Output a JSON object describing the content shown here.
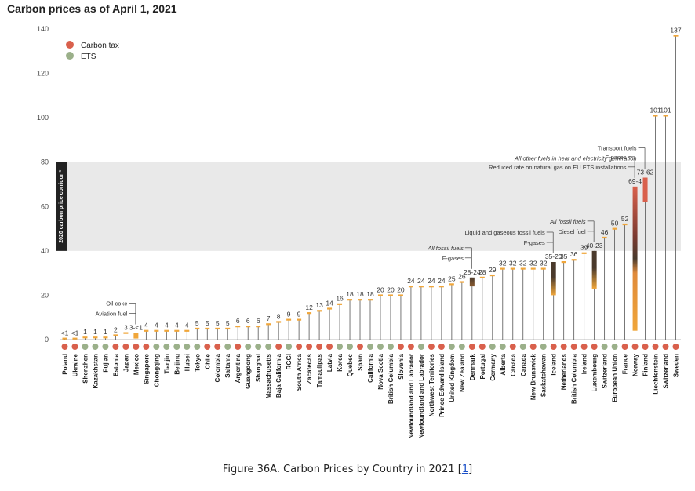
{
  "title": "Carbon prices as of April 1, 2021",
  "caption": {
    "text": "Figure 36A. Carbon Prices by Country in 2021 [",
    "link": "1",
    "close": "]"
  },
  "chart_data": {
    "type": "bar",
    "ylim": [
      0,
      140
    ],
    "yticks": [
      0,
      20,
      40,
      60,
      80,
      100,
      120,
      140
    ],
    "corridor": {
      "range": [
        40,
        80
      ],
      "label": "2020 carbon price corridor *"
    },
    "legend": {
      "placement": "top-left",
      "items": [
        {
          "name": "Carbon tax",
          "color": "#d9604c"
        },
        {
          "name": "ETS",
          "color": "#9bb08a"
        }
      ]
    },
    "colors": {
      "tax": "#d9604c",
      "ets": "#9bb08a",
      "bar": "#f0a63a",
      "dark": "#4a3a2c",
      "stem": "#555555",
      "grid": "#e9e9e9"
    },
    "categories": [
      {
        "name": "Poland",
        "type": "tax",
        "value": 0.5,
        "label": "<1"
      },
      {
        "name": "Ukraine",
        "type": "tax",
        "value": 0.5,
        "label": "<1"
      },
      {
        "name": "Shenzhen",
        "type": "ets",
        "value": 1,
        "label": "1"
      },
      {
        "name": "Kazakhstan",
        "type": "ets",
        "value": 1,
        "label": "1"
      },
      {
        "name": "Fujian",
        "type": "ets",
        "value": 1,
        "label": "1"
      },
      {
        "name": "Estonia",
        "type": "tax",
        "value": 2,
        "label": "2"
      },
      {
        "name": "Japan",
        "type": "tax",
        "value": 3,
        "label": "3"
      },
      {
        "name": "Mexico",
        "type": "tax",
        "low": 0.5,
        "high": 3,
        "label": "3-<1",
        "style": "range"
      },
      {
        "name": "Singapore",
        "type": "tax",
        "value": 4,
        "label": "4"
      },
      {
        "name": "Chongqing",
        "type": "ets",
        "value": 4,
        "label": "4"
      },
      {
        "name": "Tianjin",
        "type": "ets",
        "value": 4,
        "label": "4"
      },
      {
        "name": "Beijing",
        "type": "ets",
        "value": 4,
        "label": "4"
      },
      {
        "name": "Hubei",
        "type": "ets",
        "value": 4,
        "label": "4"
      },
      {
        "name": "Tokyo",
        "type": "ets",
        "value": 5,
        "label": "5"
      },
      {
        "name": "Chile",
        "type": "tax",
        "value": 5,
        "label": "5"
      },
      {
        "name": "Colombia",
        "type": "tax",
        "value": 5,
        "label": "5"
      },
      {
        "name": "Saitama",
        "type": "ets",
        "value": 5,
        "label": "5"
      },
      {
        "name": "Argentina",
        "type": "tax",
        "value": 6,
        "label": "6"
      },
      {
        "name": "Guangdong",
        "type": "ets",
        "value": 6,
        "label": "6"
      },
      {
        "name": "Shanghai",
        "type": "ets",
        "value": 6,
        "label": "6"
      },
      {
        "name": "Massachusetts",
        "type": "ets",
        "value": 7,
        "label": "7"
      },
      {
        "name": "Baja California",
        "type": "tax",
        "value": 8,
        "label": "8"
      },
      {
        "name": "RGGI",
        "type": "ets",
        "value": 9,
        "label": "9"
      },
      {
        "name": "South Africa",
        "type": "tax",
        "value": 9,
        "label": "9"
      },
      {
        "name": "Zacatecas",
        "type": "tax",
        "value": 12,
        "label": "12"
      },
      {
        "name": "Tamaulipas",
        "type": "tax",
        "value": 13,
        "label": "13"
      },
      {
        "name": "Latvia",
        "type": "tax",
        "value": 14,
        "label": "14"
      },
      {
        "name": "Korea",
        "type": "ets",
        "value": 16,
        "label": "16"
      },
      {
        "name": "Quebec",
        "type": "ets",
        "value": 18,
        "label": "18"
      },
      {
        "name": "Spain",
        "type": "tax",
        "value": 18,
        "label": "18"
      },
      {
        "name": "California",
        "type": "ets",
        "value": 18,
        "label": "18"
      },
      {
        "name": "Nova Scotia",
        "type": "ets",
        "value": 20,
        "label": "20"
      },
      {
        "name": "British Columbia",
        "type": "ets",
        "value": 20,
        "label": "20"
      },
      {
        "name": "Slovenia",
        "type": "tax",
        "value": 20,
        "label": "20"
      },
      {
        "name": "Newfoundland and Labrador",
        "type": "tax",
        "value": 24,
        "label": "24"
      },
      {
        "name": "Newfoundland and Labrador",
        "type": "ets",
        "value": 24,
        "label": "24"
      },
      {
        "name": "Northwest Territories",
        "type": "tax",
        "value": 24,
        "label": "24"
      },
      {
        "name": "Prince Edward Island",
        "type": "tax",
        "value": 24,
        "label": "24"
      },
      {
        "name": "United Kingdom",
        "type": "ets",
        "value": 25,
        "label": "25"
      },
      {
        "name": "New Zealand",
        "type": "ets",
        "value": 26,
        "label": "26"
      },
      {
        "name": "Denmark",
        "type": "tax",
        "low": 24,
        "high": 28,
        "label": "28-24",
        "style": "dark"
      },
      {
        "name": "Portugal",
        "type": "tax",
        "value": 28,
        "label": "28"
      },
      {
        "name": "Germany",
        "type": "ets",
        "value": 29,
        "label": "29"
      },
      {
        "name": "Alberta",
        "type": "ets",
        "value": 32,
        "label": "32"
      },
      {
        "name": "Canada",
        "type": "tax",
        "value": 32,
        "label": "32"
      },
      {
        "name": "Canada",
        "type": "ets",
        "value": 32,
        "label": "32"
      },
      {
        "name": "New Brunswick",
        "type": "tax",
        "value": 32,
        "label": "32"
      },
      {
        "name": "Saskatchewan",
        "type": "ets",
        "value": 32,
        "label": "32"
      },
      {
        "name": "Iceland",
        "type": "tax",
        "low": 20,
        "high": 35,
        "label": "35-20",
        "style": "gradient"
      },
      {
        "name": "Netherlands",
        "type": "tax",
        "value": 35,
        "label": "35"
      },
      {
        "name": "British Columbia",
        "type": "tax",
        "value": 36,
        "label": "36"
      },
      {
        "name": "Ireland",
        "type": "tax",
        "value": 39,
        "label": "39"
      },
      {
        "name": "Luxembourg",
        "type": "tax",
        "low": 23,
        "high": 40,
        "label": "40-23",
        "style": "gradient"
      },
      {
        "name": "Switzerland",
        "type": "ets",
        "value": 46,
        "label": "46"
      },
      {
        "name": "European Union",
        "type": "ets",
        "value": 50,
        "label": "50"
      },
      {
        "name": "France",
        "type": "tax",
        "value": 52,
        "label": "52"
      },
      {
        "name": "Norway",
        "type": "tax",
        "low": 4,
        "high": 69,
        "label": "69-4",
        "style": "gradient-red"
      },
      {
        "name": "Finland",
        "type": "tax",
        "low": 62,
        "high": 73,
        "label": "73-62",
        "style": "red"
      },
      {
        "name": "Liechtenstein",
        "type": "tax",
        "value": 101,
        "label": "101"
      },
      {
        "name": "Switzerland",
        "type": "tax",
        "value": 101,
        "label": "101"
      },
      {
        "name": "Sweden",
        "type": "tax",
        "value": 137,
        "label": "137"
      }
    ],
    "annotations": [
      {
        "text": "Oil coke",
        "target": 7,
        "value": 3,
        "italic": false
      },
      {
        "text": "Aviation fuel",
        "target": 7,
        "value": 0.5,
        "italic": false
      },
      {
        "text": "All fossil fuels",
        "target": 40,
        "value": 28,
        "italic": true
      },
      {
        "text": "F-gases",
        "target": 40,
        "value": 24,
        "italic": false
      },
      {
        "text": "Liquid and gaseous fossil fuels",
        "target": 48,
        "value": 35,
        "italic": false
      },
      {
        "text": "F-gases",
        "target": 48,
        "value": 20,
        "italic": false
      },
      {
        "text": "All fossil fuels",
        "target": 52,
        "value": 40,
        "italic": true
      },
      {
        "text": "Diesel fuel",
        "target": 52,
        "value": 23,
        "italic": false
      },
      {
        "text": "F-gases",
        "target": 56,
        "value": 69,
        "italic": false
      },
      {
        "text": "Reduced rate on natural gas on EU ETS installations",
        "target": 56,
        "value": 4,
        "italic": false
      },
      {
        "text": "Transport fuels",
        "target": 57,
        "value": 73,
        "italic": false
      },
      {
        "text": "All other fuels in heat and electricity generation",
        "target": 57,
        "value": 62,
        "italic": true
      }
    ]
  }
}
